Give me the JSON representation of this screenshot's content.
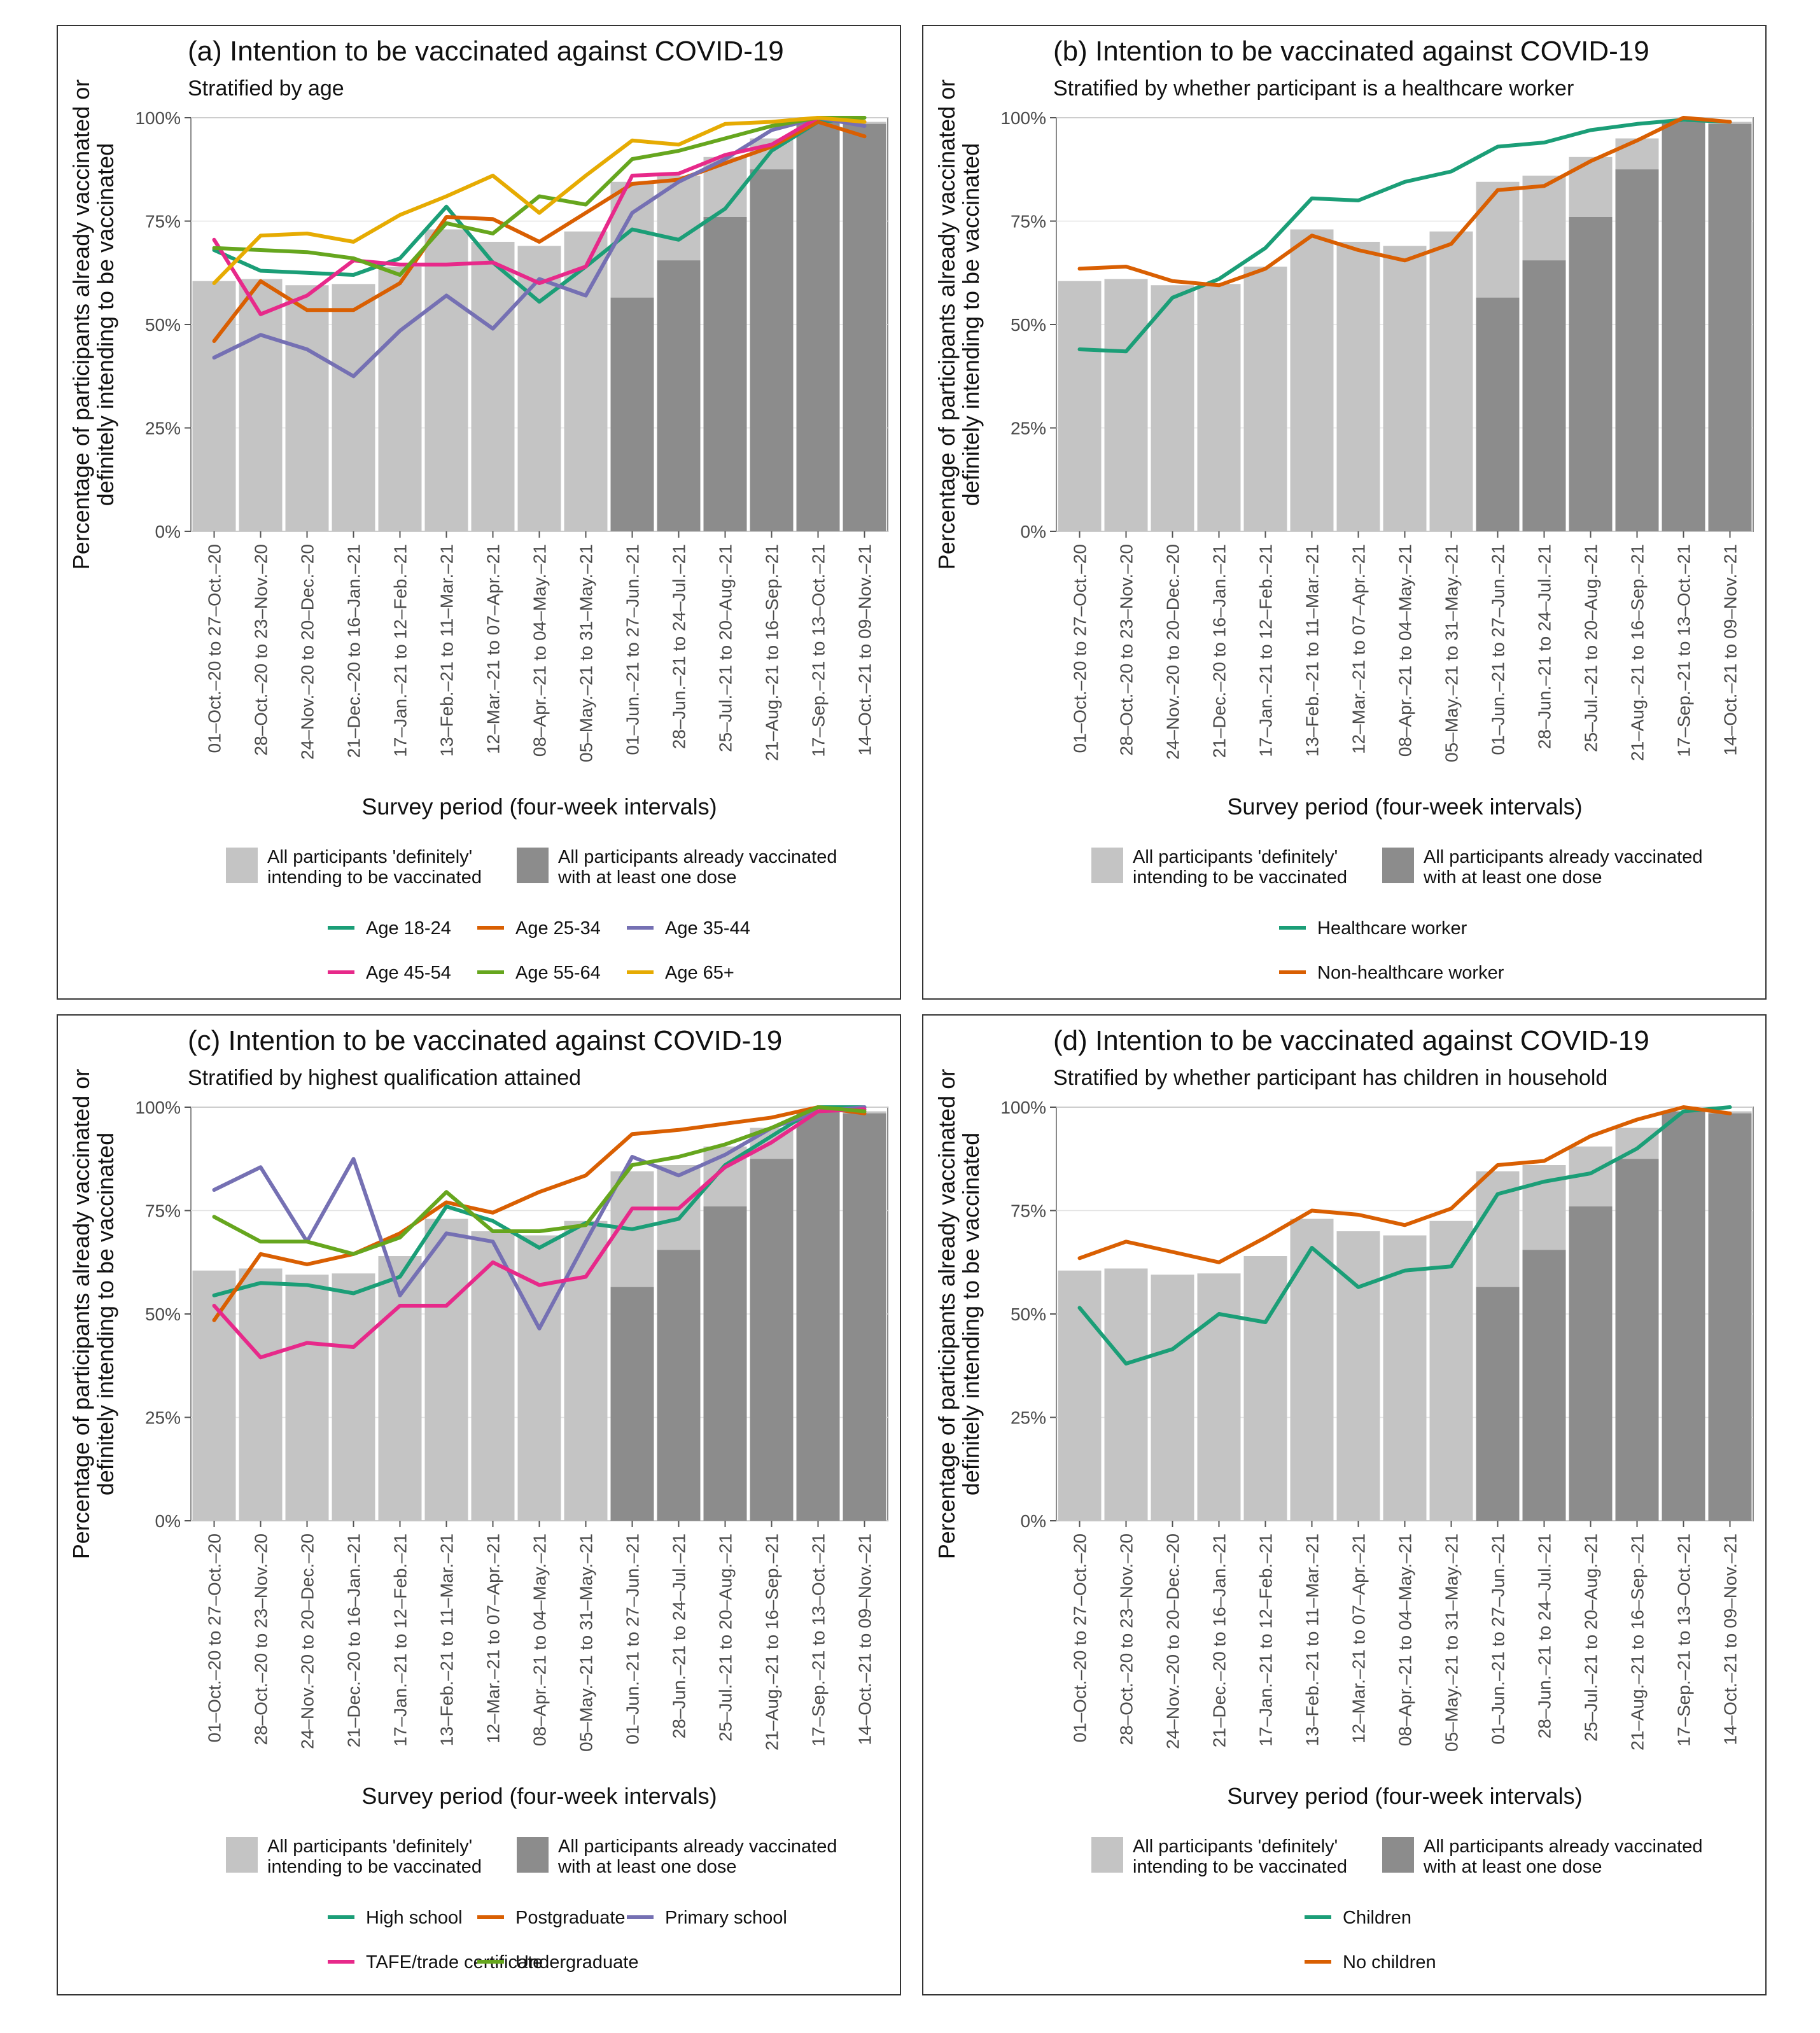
{
  "chart_data": [
    {
      "type": "line",
      "panel_id": "a",
      "title": "(a) Intention to be vaccinated against COVID-19",
      "subtitle": "Stratified by age",
      "xlabel": "Survey period (four-week intervals)",
      "ylabel_line1": "Percentage of participants already vaccinated or",
      "ylabel_line2": "definitely intending to be vaccinated",
      "ylim": [
        0,
        100
      ],
      "yticks": [
        "0%",
        "25%",
        "50%",
        "75%",
        "100%"
      ],
      "categories": [
        "01–Oct.–20 to 27–Oct.–20",
        "28–Oct.–20 to 23–Nov.–20",
        "24–Nov.–20 to 20–Dec.–20",
        "21–Dec.–20 to 16–Jan.–21",
        "17–Jan.–21 to 12–Feb.–21",
        "13–Feb.–21 to 11–Mar.–21",
        "12–Mar.–21 to 07–Apr.–21",
        "08–Apr.–21 to 04–May.–21",
        "05–May.–21 to 31–May.–21",
        "01–Jun.–21 to 27–Jun.–21",
        "28–Jun.–21 to 24–Jul.–21",
        "25–Jul.–21 to 20–Aug.–21",
        "21–Aug.–21 to 16–Sep.–21",
        "17–Sep.–21 to 13–Oct.–21",
        "14–Oct.–21 to 09–Nov.–21"
      ],
      "bars": {
        "intending_label_line1": "All participants 'definitely'",
        "intending_label_line2": "intending to be  vaccinated",
        "vaccinated_label_line1": "All participants already vaccinated",
        "vaccinated_label_line2": "with at least one dose",
        "intending_color": "#c4c4c4",
        "vaccinated_color": "#8c8c8c",
        "intending": [
          60.5,
          61,
          59.5,
          59.8,
          64,
          73,
          70,
          69,
          72.5,
          84.5,
          86,
          90.5,
          95,
          99,
          99
        ],
        "vaccinated": [
          0,
          0,
          0,
          0,
          0,
          0,
          0,
          0,
          0,
          56.5,
          65.5,
          76,
          87.5,
          99,
          98.5
        ]
      },
      "series": [
        {
          "name": "Age 18-24",
          "color": "#1b9e77",
          "values": [
            68,
            63,
            62.5,
            62,
            66,
            78.5,
            65,
            55.5,
            64,
            73,
            70.5,
            78,
            92,
            99,
            100
          ]
        },
        {
          "name": "Age 25-34",
          "color": "#d95f02",
          "values": [
            46,
            60.5,
            53.5,
            53.5,
            60,
            76,
            75.5,
            70,
            77,
            84,
            85,
            89,
            93,
            99,
            95.5
          ]
        },
        {
          "name": "Age 35-44",
          "color": "#7570b3",
          "values": [
            42,
            47.5,
            44,
            37.5,
            48.5,
            57,
            49,
            61,
            57,
            77,
            84.5,
            90,
            97,
            100,
            98
          ]
        },
        {
          "name": "Age 45-54",
          "color": "#e7298a",
          "values": [
            70.5,
            52.5,
            57,
            65.5,
            64.5,
            64.5,
            65,
            60,
            64,
            86,
            86.5,
            91,
            93.5,
            100,
            99
          ]
        },
        {
          "name": "Age 55-64",
          "color": "#66a61e",
          "values": [
            68.5,
            68,
            67.5,
            66,
            62,
            74.5,
            72,
            81,
            79,
            90,
            92,
            95,
            98,
            100,
            100
          ]
        },
        {
          "name": "Age 65+",
          "color": "#e6ab02",
          "values": [
            60,
            71.5,
            72,
            70,
            76.5,
            81,
            86,
            77,
            86,
            94.5,
            93.5,
            98.5,
            99,
            100,
            99
          ]
        }
      ]
    },
    {
      "type": "line",
      "panel_id": "b",
      "title": "(b) Intention to be vaccinated against COVID-19",
      "subtitle": "Stratified by whether participant is a healthcare worker",
      "xlabel": "Survey period (four-week intervals)",
      "ylabel_line1": "Percentage of participants already vaccinated or",
      "ylabel_line2": "definitely intending to be vaccinated",
      "ylim": [
        0,
        100
      ],
      "yticks": [
        "0%",
        "25%",
        "50%",
        "75%",
        "100%"
      ],
      "categories": [
        "01–Oct.–20 to 27–Oct.–20",
        "28–Oct.–20 to 23–Nov.–20",
        "24–Nov.–20 to 20–Dec.–20",
        "21–Dec.–20 to 16–Jan.–21",
        "17–Jan.–21 to 12–Feb.–21",
        "13–Feb.–21 to 11–Mar.–21",
        "12–Mar.–21 to 07–Apr.–21",
        "08–Apr.–21 to 04–May.–21",
        "05–May.–21 to 31–May.–21",
        "01–Jun.–21 to 27–Jun.–21",
        "28–Jun.–21 to 24–Jul.–21",
        "25–Jul.–21 to 20–Aug.–21",
        "21–Aug.–21 to 16–Sep.–21",
        "17–Sep.–21 to 13–Oct.–21",
        "14–Oct.–21 to 09–Nov.–21"
      ],
      "bars": {
        "intending_label_line1": "All participants 'definitely'",
        "intending_label_line2": "intending to be  vaccinated",
        "vaccinated_label_line1": "All participants already vaccinated",
        "vaccinated_label_line2": "with at least one dose",
        "intending_color": "#c4c4c4",
        "vaccinated_color": "#8c8c8c",
        "intending": [
          60.5,
          61,
          59.5,
          59.8,
          64,
          73,
          70,
          69,
          72.5,
          84.5,
          86,
          90.5,
          95,
          99,
          99
        ],
        "vaccinated": [
          0,
          0,
          0,
          0,
          0,
          0,
          0,
          0,
          0,
          56.5,
          65.5,
          76,
          87.5,
          99,
          98.5
        ]
      },
      "series": [
        {
          "name": "Healthcare worker",
          "color": "#1b9e77",
          "values": [
            44,
            43.5,
            56.5,
            61,
            68.5,
            80.5,
            80,
            84.5,
            87,
            93,
            94,
            97,
            98.5,
            99.5,
            99
          ]
        },
        {
          "name": "Non-healthcare worker",
          "color": "#d95f02",
          "values": [
            63.5,
            64,
            60.5,
            59.5,
            63.5,
            71.5,
            68,
            65.5,
            69.5,
            82.5,
            83.5,
            89.5,
            94.5,
            100,
            99
          ]
        }
      ]
    },
    {
      "type": "line",
      "panel_id": "c",
      "title": "(c) Intention to be vaccinated against COVID-19",
      "subtitle": "Stratified by highest qualification attained",
      "xlabel": "Survey period (four-week intervals)",
      "ylabel_line1": "Percentage of participants already vaccinated or",
      "ylabel_line2": "definitely intending to be vaccinated",
      "ylim": [
        0,
        100
      ],
      "yticks": [
        "0%",
        "25%",
        "50%",
        "75%",
        "100%"
      ],
      "categories": [
        "01–Oct.–20 to 27–Oct.–20",
        "28–Oct.–20 to 23–Nov.–20",
        "24–Nov.–20 to 20–Dec.–20",
        "21–Dec.–20 to 16–Jan.–21",
        "17–Jan.–21 to 12–Feb.–21",
        "13–Feb.–21 to 11–Mar.–21",
        "12–Mar.–21 to 07–Apr.–21",
        "08–Apr.–21 to 04–May.–21",
        "05–May.–21 to 31–May.–21",
        "01–Jun.–21 to 27–Jun.–21",
        "28–Jun.–21 to 24–Jul.–21",
        "25–Jul.–21 to 20–Aug.–21",
        "21–Aug.–21 to 16–Sep.–21",
        "17–Sep.–21 to 13–Oct.–21",
        "14–Oct.–21 to 09–Nov.–21"
      ],
      "bars": {
        "intending_label_line1": "All participants 'definitely'",
        "intending_label_line2": "intending to be  vaccinated",
        "vaccinated_label_line1": "All participants already vaccinated",
        "vaccinated_label_line2": "with at least one dose",
        "intending_color": "#c4c4c4",
        "vaccinated_color": "#8c8c8c",
        "intending": [
          60.5,
          61,
          59.5,
          59.8,
          64,
          73,
          70,
          69,
          72.5,
          84.5,
          86,
          90.5,
          95,
          99,
          99
        ],
        "vaccinated": [
          0,
          0,
          0,
          0,
          0,
          0,
          0,
          0,
          0,
          56.5,
          65.5,
          76,
          87.5,
          99,
          98.5
        ]
      },
      "series": [
        {
          "name": "High school",
          "color": "#1b9e77",
          "values": [
            54.5,
            57.5,
            57,
            55,
            59,
            76,
            72.5,
            66,
            72,
            70.5,
            73,
            86,
            93,
            100,
            100
          ]
        },
        {
          "name": "Postgraduate",
          "color": "#d95f02",
          "values": [
            48.5,
            64.5,
            62,
            64.5,
            69.5,
            77,
            74.5,
            79.5,
            83.5,
            93.5,
            94.5,
            96,
            97.5,
            100,
            98.5
          ]
        },
        {
          "name": "Primary school",
          "color": "#7570b3",
          "values": [
            80,
            85.5,
            67.5,
            87.5,
            54.5,
            69.5,
            67.5,
            46.5,
            67.5,
            88,
            83.5,
            88.5,
            95,
            99,
            100
          ]
        },
        {
          "name": "TAFE/trade certificate",
          "color": "#e7298a",
          "values": [
            52,
            39.5,
            43,
            42,
            52,
            52,
            62.5,
            57,
            59,
            75.5,
            75.5,
            85.5,
            91.5,
            99,
            99.5
          ]
        },
        {
          "name": "Undergraduate",
          "color": "#66a61e",
          "values": [
            73.5,
            67.5,
            67.5,
            64.5,
            68.5,
            79.5,
            70,
            70,
            71.5,
            86,
            88,
            91,
            95,
            100,
            99
          ]
        }
      ]
    },
    {
      "type": "line",
      "panel_id": "d",
      "title": "(d) Intention to be vaccinated against COVID-19",
      "subtitle": "Stratified by whether participant has children in household",
      "xlabel": "Survey period (four-week intervals)",
      "ylabel_line1": "Percentage of participants already vaccinated or",
      "ylabel_line2": "definitely intending to be vaccinated",
      "ylim": [
        0,
        100
      ],
      "yticks": [
        "0%",
        "25%",
        "50%",
        "75%",
        "100%"
      ],
      "categories": [
        "01–Oct.–20 to 27–Oct.–20",
        "28–Oct.–20 to 23–Nov.–20",
        "24–Nov.–20 to 20–Dec.–20",
        "21–Dec.–20 to 16–Jan.–21",
        "17–Jan.–21 to 12–Feb.–21",
        "13–Feb.–21 to 11–Mar.–21",
        "12–Mar.–21 to 07–Apr.–21",
        "08–Apr.–21 to 04–May.–21",
        "05–May.–21 to 31–May.–21",
        "01–Jun.–21 to 27–Jun.–21",
        "28–Jun.–21 to 24–Jul.–21",
        "25–Jul.–21 to 20–Aug.–21",
        "21–Aug.–21 to 16–Sep.–21",
        "17–Sep.–21 to 13–Oct.–21",
        "14–Oct.–21 to 09–Nov.–21"
      ],
      "bars": {
        "intending_label_line1": "All participants 'definitely'",
        "intending_label_line2": "intending to be  vaccinated",
        "vaccinated_label_line1": "All participants already vaccinated",
        "vaccinated_label_line2": "with at least one dose",
        "intending_color": "#c4c4c4",
        "vaccinated_color": "#8c8c8c",
        "intending": [
          60.5,
          61,
          59.5,
          59.8,
          64,
          73,
          70,
          69,
          72.5,
          84.5,
          86,
          90.5,
          95,
          99,
          99
        ],
        "vaccinated": [
          0,
          0,
          0,
          0,
          0,
          0,
          0,
          0,
          0,
          56.5,
          65.5,
          76,
          87.5,
          99,
          98.5
        ]
      },
      "series": [
        {
          "name": "Children",
          "color": "#1b9e77",
          "values": [
            51.5,
            38,
            41.5,
            50,
            48,
            66,
            56.5,
            60.5,
            61.5,
            79,
            82,
            84,
            90,
            99,
            100
          ]
        },
        {
          "name": "No children",
          "color": "#d95f02",
          "values": [
            63.5,
            67.5,
            65,
            62.5,
            68.5,
            75,
            74,
            71.5,
            75.5,
            86,
            87,
            93,
            97,
            100,
            98.5
          ]
        }
      ]
    }
  ]
}
